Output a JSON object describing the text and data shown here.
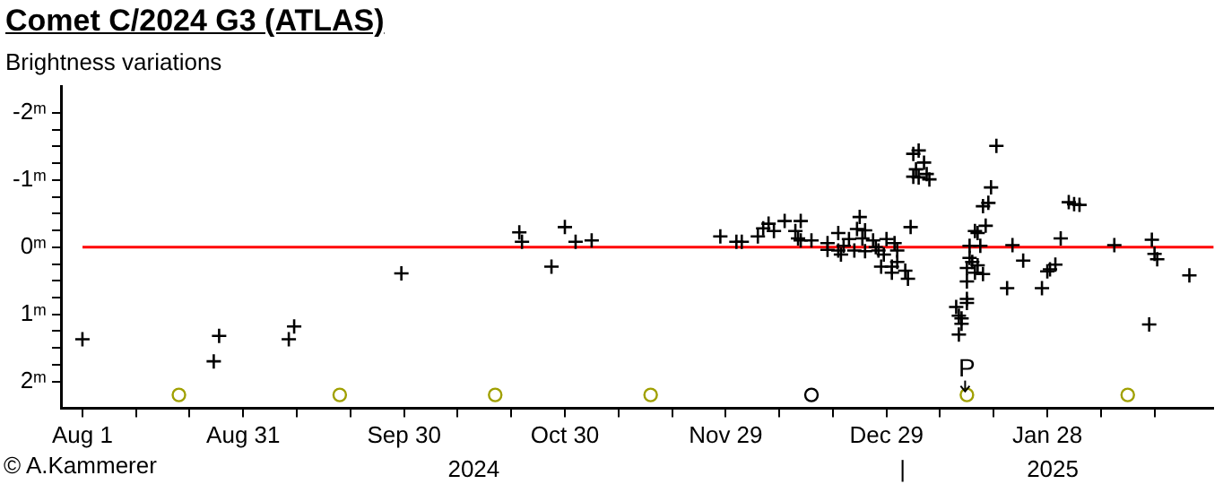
{
  "chart_data": {
    "type": "scatter",
    "title": "Comet C/2024 G3 (ATLAS)",
    "subtitle": "Brightness variations",
    "annotations": [
      "© A.Kammerer",
      {
        "text": "P",
        "x": "2025-01-13",
        "y": 2.2
      }
    ],
    "xlim": [
      "2024-07-28",
      "2025-02-28"
    ],
    "xticks": [
      {
        "value": "2024-08-01",
        "label": "Aug 1"
      },
      {
        "value": "2024-08-11",
        "label": null
      },
      {
        "value": "2024-08-21",
        "label": null
      },
      {
        "value": "2024-08-31",
        "label": "Aug 31"
      },
      {
        "value": "2024-09-10",
        "label": null
      },
      {
        "value": "2024-09-20",
        "label": null
      },
      {
        "value": "2024-09-30",
        "label": "Sep 30"
      },
      {
        "value": "2024-10-10",
        "label": null
      },
      {
        "value": "2024-10-20",
        "label": null
      },
      {
        "value": "2024-10-30",
        "label": "Oct 30"
      },
      {
        "value": "2024-11-09",
        "label": null
      },
      {
        "value": "2024-11-19",
        "label": null
      },
      {
        "value": "2024-11-29",
        "label": "Nov 29"
      },
      {
        "value": "2024-12-09",
        "label": null
      },
      {
        "value": "2024-12-19",
        "label": null
      },
      {
        "value": "2024-12-29",
        "label": "Dec 29"
      },
      {
        "value": "2025-01-08",
        "label": null
      },
      {
        "value": "2025-01-18",
        "label": null
      },
      {
        "value": "2025-01-28",
        "label": "Jan 28"
      },
      {
        "value": "2025-02-07",
        "label": null
      },
      {
        "value": "2025-02-17",
        "label": null
      }
    ],
    "x2lim": [
      "2024-07-28",
      "2025-02-28"
    ],
    "x2ticks": [
      {
        "value": "2024-10-13",
        "label": "2024"
      },
      {
        "value": "2025-01-01",
        "label": "|"
      },
      {
        "value": "2025-01-29",
        "label": "2025"
      }
    ],
    "ylim": [
      2.4,
      -2.4
    ],
    "yticks": [
      {
        "value": -2,
        "label": "-2ᵐ"
      },
      {
        "value": -1.75,
        "label": null
      },
      {
        "value": -1.5,
        "label": null
      },
      {
        "value": -1.25,
        "label": null
      },
      {
        "value": -1,
        "label": "-1ᵐ"
      },
      {
        "value": -0.75,
        "label": null
      },
      {
        "value": -0.5,
        "label": null
      },
      {
        "value": -0.25,
        "label": null
      },
      {
        "value": 0,
        "label": "0ᵐ"
      },
      {
        "value": 0.25,
        "label": null
      },
      {
        "value": 0.5,
        "label": null
      },
      {
        "value": 0.75,
        "label": null
      },
      {
        "value": 1,
        "label": "1ᵐ"
      },
      {
        "value": 1.25,
        "label": null
      },
      {
        "value": 1.5,
        "label": null
      },
      {
        "value": 1.75,
        "label": null
      },
      {
        "value": 2,
        "label": "2ᵐ"
      }
    ],
    "ref_lines": [
      {
        "axis": "y",
        "value": 0,
        "color": "#ff0000"
      }
    ],
    "series": [
      {
        "marker": "cross",
        "color": "#000000",
        "x": [
          "2024-08-01",
          "2024-08-25T12:00",
          "2024-08-26T12:00",
          "2024-09-08T12:00",
          "2024-09-09T12:00",
          "2024-09-29T12:00",
          "2024-10-21T12:00",
          "2024-10-22",
          "2024-10-27T12:00",
          "2024-10-30",
          "2024-11-01",
          "2024-11-04",
          "2024-11-28",
          "2024-12-01",
          "2024-12-02",
          "2024-12-05",
          "2024-12-06",
          "2024-12-07",
          "2024-12-08",
          "2024-12-10",
          "2024-12-12",
          "2024-12-12T12:00",
          "2024-12-13",
          "2024-12-13",
          "2024-12-15",
          "2024-12-18",
          "2024-12-18",
          "2024-12-20",
          "2024-12-20",
          "2024-12-20T12:00",
          "2024-12-21",
          "2024-12-22",
          "2024-12-23",
          "2024-12-23T12:00",
          "2024-12-24",
          "2024-12-24T12:00",
          "2024-12-25",
          "2024-12-25",
          "2024-12-26T12:00",
          "2024-12-27",
          "2024-12-27T12:00",
          "2024-12-28",
          "2024-12-28T12:00",
          "2024-12-29",
          "2024-12-30",
          "2024-12-30",
          "2024-12-30T12:00",
          "2024-12-31",
          "2024-12-31",
          "2025-01-01T12:00",
          "2025-01-02",
          "2025-01-02T12:00",
          "2025-01-03",
          "2025-01-04",
          "2025-01-03",
          "2025-01-03T12:00",
          "2025-01-05",
          "2025-01-04",
          "2025-01-05T12:00",
          "2025-01-06",
          "2025-01-11",
          "2025-01-11T12:00",
          "2025-01-11T12:00",
          "2025-01-12",
          "2025-01-12",
          "2025-01-13",
          "2025-01-13",
          "2025-01-13",
          "2025-01-13",
          "2025-01-13T12:00",
          "2025-01-13T12:00",
          "2025-01-14",
          "2025-01-14T12:00",
          "2025-01-14T12:00",
          "2025-01-15",
          "2025-01-15",
          "2025-01-15T12:00",
          "2025-01-16",
          "2025-01-16",
          "2025-01-16T12:00",
          "2025-01-17",
          "2025-01-17T12:00",
          "2025-01-18T12:00",
          "2025-01-20T12:00",
          "2025-01-21T12:00",
          "2025-01-23T12:00",
          "2025-01-27",
          "2025-01-28",
          "2025-01-28T12:00",
          "2025-01-29T12:00",
          "2025-01-30T12:00",
          "2025-02-01",
          "2025-02-02",
          "2025-02-03",
          "2025-02-09T12:00",
          "2025-02-16",
          "2025-02-16T12:00",
          "2025-02-17",
          "2025-02-17T12:00",
          "2025-02-23T12:00"
        ],
        "values": [
          1.37,
          1.7,
          1.32,
          1.37,
          1.18,
          0.39,
          -0.22,
          -0.08,
          0.29,
          -0.3,
          -0.08,
          -0.1,
          -0.16,
          -0.08,
          -0.08,
          -0.16,
          -0.28,
          -0.35,
          -0.24,
          -0.39,
          -0.24,
          -0.13,
          -0.39,
          -0.1,
          -0.1,
          -0.06,
          0.04,
          -0.21,
          0.05,
          0.11,
          -0.02,
          -0.12,
          0.05,
          -0.27,
          -0.45,
          -0.13,
          -0.25,
          0.06,
          -0.1,
          0.0,
          0.05,
          0.29,
          0.11,
          -0.12,
          0.29,
          0.38,
          -0.06,
          0.05,
          0.22,
          0.35,
          0.47,
          -0.3,
          -1.39,
          -1.44,
          -1.05,
          -1.16,
          -1.26,
          -1.04,
          -1.09,
          -1.01,
          0.89,
          1.3,
          1.02,
          1.14,
          1.06,
          0.83,
          0.77,
          0.51,
          0.31,
          -0.02,
          0.16,
          0.22,
          0.38,
          -0.24,
          -0.21,
          0.27,
          -0.02,
          0.4,
          -0.61,
          -0.32,
          -0.66,
          -0.89,
          -1.51,
          0.61,
          -0.03,
          0.2,
          0.61,
          0.36,
          0.33,
          0.26,
          -0.13,
          -0.67,
          -0.64,
          -0.63,
          -0.03,
          1.15,
          -0.11,
          0.1,
          0.18,
          0.42
        ]
      },
      {
        "marker": "circle",
        "x": [
          "2024-08-19",
          "2024-09-18",
          "2024-10-17",
          "2024-11-15",
          "2024-12-15",
          "2025-01-13",
          "2025-02-12"
        ],
        "values": [
          2.2,
          2.2,
          2.2,
          2.2,
          2.2,
          2.2,
          2.2
        ],
        "colors": [
          "#a0a000",
          "#a0a000",
          "#a0a000",
          "#a0a000",
          "#000000",
          "#a0a000",
          "#a0a000"
        ]
      }
    ]
  }
}
